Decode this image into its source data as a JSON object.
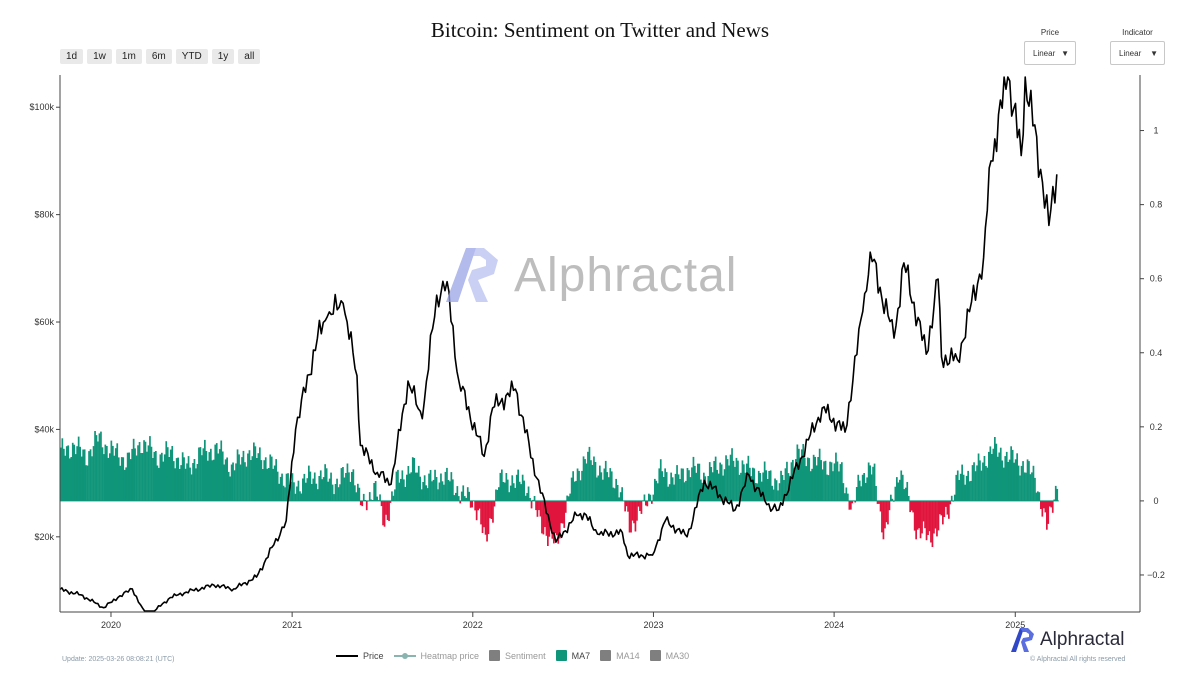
{
  "title": "Bitcoin: Sentiment on Twitter and News",
  "range_buttons": [
    "1d",
    "1w",
    "1m",
    "6m",
    "YTD",
    "1y",
    "all"
  ],
  "controls": {
    "price": {
      "label": "Price",
      "value": "Linear"
    },
    "indicator": {
      "label": "Indicator",
      "value": "Linear"
    }
  },
  "watermark": "Alphractal",
  "brand": "Alphractal",
  "update_text": "Update: 2025-03-26 08:08:21 (UTC)",
  "copyright": "© Alphractal All rights reserved",
  "legend": [
    {
      "label": "Price",
      "kind": "line",
      "color": "#000000"
    },
    {
      "label": "Heatmap price",
      "kind": "line-dot",
      "color": "#8ab4b0"
    },
    {
      "label": "Sentiment",
      "kind": "box",
      "color": "#7f7f7f"
    },
    {
      "label": "MA7",
      "kind": "box",
      "color": "#0f9579"
    },
    {
      "label": "MA14",
      "kind": "box",
      "color": "#7f7f7f"
    },
    {
      "label": "MA30",
      "kind": "box",
      "color": "#7f7f7f"
    }
  ],
  "chart_data": {
    "type": "line",
    "x_axis": {
      "type": "date",
      "range": [
        "2019-09-20",
        "2025-09-10"
      ],
      "ticks": [
        "2020",
        "2021",
        "2022",
        "2023",
        "2024",
        "2025"
      ]
    },
    "y_left": {
      "label": "",
      "range": [
        6000,
        106000
      ],
      "ticks": [
        "$20k",
        "$40k",
        "$60k",
        "$80k",
        "$100k"
      ],
      "tick_values": [
        20000,
        40000,
        60000,
        80000,
        100000
      ]
    },
    "y_right": {
      "label": "",
      "range": [
        -0.3,
        1.15
      ],
      "ticks": [
        "−0.2",
        "0",
        "0.2",
        "0.4",
        "0.6",
        "0.8",
        "1"
      ],
      "tick_values": [
        -0.2,
        0,
        0.2,
        0.4,
        0.6,
        0.8,
        1
      ]
    },
    "colors": {
      "price": "#000000",
      "positive": "#0f9579",
      "negative": "#e0143c"
    },
    "series": [
      {
        "name": "Price",
        "axis": "left",
        "points": [
          [
            "2019-09-20",
            10200
          ],
          [
            "2019-11-01",
            9200
          ],
          [
            "2019-12-17",
            6800
          ],
          [
            "2020-01-15",
            8700
          ],
          [
            "2020-02-13",
            10300
          ],
          [
            "2020-03-13",
            5000
          ],
          [
            "2020-04-30",
            8700
          ],
          [
            "2020-06-01",
            9700
          ],
          [
            "2020-07-27",
            11000
          ],
          [
            "2020-09-05",
            10300
          ],
          [
            "2020-10-21",
            12500
          ],
          [
            "2020-11-25",
            18500
          ],
          [
            "2020-12-20",
            23000
          ],
          [
            "2021-01-08",
            40000
          ],
          [
            "2021-02-21",
            57000
          ],
          [
            "2021-03-13",
            61000
          ],
          [
            "2021-04-14",
            63500
          ],
          [
            "2021-05-12",
            50000
          ],
          [
            "2021-05-19",
            37000
          ],
          [
            "2021-06-22",
            32000
          ],
          [
            "2021-07-20",
            29800
          ],
          [
            "2021-08-23",
            49000
          ],
          [
            "2021-09-21",
            42000
          ],
          [
            "2021-10-20",
            65000
          ],
          [
            "2021-11-10",
            67500
          ],
          [
            "2021-12-04",
            49000
          ],
          [
            "2022-01-24",
            35000
          ],
          [
            "2022-02-10",
            44000
          ],
          [
            "2022-03-28",
            47500
          ],
          [
            "2022-05-10",
            31000
          ],
          [
            "2022-06-18",
            19000
          ],
          [
            "2022-07-30",
            24000
          ],
          [
            "2022-08-14",
            24400
          ],
          [
            "2022-09-10",
            20500
          ],
          [
            "2022-10-30",
            20800
          ],
          [
            "2022-11-10",
            16500
          ],
          [
            "2022-12-30",
            16600
          ],
          [
            "2023-01-25",
            23000
          ],
          [
            "2023-03-10",
            20000
          ],
          [
            "2023-04-14",
            30500
          ],
          [
            "2023-06-15",
            25000
          ],
          [
            "2023-07-13",
            31500
          ],
          [
            "2023-08-18",
            26000
          ],
          [
            "2023-09-11",
            25000
          ],
          [
            "2023-10-25",
            34500
          ],
          [
            "2023-12-08",
            44000
          ],
          [
            "2024-01-23",
            39500
          ],
          [
            "2024-02-28",
            62000
          ],
          [
            "2024-03-14",
            73000
          ],
          [
            "2024-05-01",
            57000
          ],
          [
            "2024-05-21",
            71000
          ],
          [
            "2024-07-05",
            54000
          ],
          [
            "2024-07-29",
            68000
          ],
          [
            "2024-08-05",
            53500
          ],
          [
            "2024-09-06",
            53000
          ],
          [
            "2024-10-29",
            72000
          ],
          [
            "2024-11-13",
            90000
          ],
          [
            "2024-12-17",
            106000
          ],
          [
            "2025-01-13",
            91000
          ],
          [
            "2025-01-21",
            106000
          ],
          [
            "2025-02-25",
            86000
          ],
          [
            "2025-03-10",
            78000
          ],
          [
            "2025-03-26",
            87500
          ]
        ]
      },
      {
        "name": "MA7",
        "axis": "right",
        "kind": "histogram",
        "points": [
          [
            "2019-09-20",
            0.13
          ],
          [
            "2019-10-15",
            0.15
          ],
          [
            "2019-11-10",
            0.12
          ],
          [
            "2019-12-05",
            0.17
          ],
          [
            "2020-01-05",
            0.13
          ],
          [
            "2020-02-01",
            0.11
          ],
          [
            "2020-03-01",
            0.16
          ],
          [
            "2020-04-01",
            0.12
          ],
          [
            "2020-05-01",
            0.13
          ],
          [
            "2020-06-01",
            0.09
          ],
          [
            "2020-07-01",
            0.13
          ],
          [
            "2020-08-01",
            0.14
          ],
          [
            "2020-09-01",
            0.09
          ],
          [
            "2020-10-01",
            0.13
          ],
          [
            "2020-11-01",
            0.12
          ],
          [
            "2020-12-01",
            0.08
          ],
          [
            "2021-01-01",
            0.04
          ],
          [
            "2021-02-01",
            0.06
          ],
          [
            "2021-03-01",
            0.07
          ],
          [
            "2021-04-01",
            0.05
          ],
          [
            "2021-05-01",
            0.09
          ],
          [
            "2021-05-20",
            -0.02
          ],
          [
            "2021-06-15",
            0.04
          ],
          [
            "2021-07-05",
            -0.06
          ],
          [
            "2021-08-01",
            0.06
          ],
          [
            "2021-09-01",
            0.09
          ],
          [
            "2021-10-01",
            0.05
          ],
          [
            "2021-11-01",
            0.07
          ],
          [
            "2021-12-01",
            0.03
          ],
          [
            "2022-01-10",
            -0.02
          ],
          [
            "2022-01-25",
            -0.12
          ],
          [
            "2022-02-20",
            0.05
          ],
          [
            "2022-03-20",
            0.06
          ],
          [
            "2022-04-20",
            0.04
          ],
          [
            "2022-05-15",
            -0.06
          ],
          [
            "2022-06-18",
            -0.12
          ],
          [
            "2022-07-15",
            0.03
          ],
          [
            "2022-08-15",
            0.12
          ],
          [
            "2022-09-20",
            0.08
          ],
          [
            "2022-10-20",
            0.05
          ],
          [
            "2022-11-12",
            -0.07
          ],
          [
            "2022-12-10",
            -0.02
          ],
          [
            "2023-01-15",
            0.08
          ],
          [
            "2023-02-15",
            0.06
          ],
          [
            "2023-03-15",
            0.09
          ],
          [
            "2023-04-15",
            0.07
          ],
          [
            "2023-05-15",
            0.1
          ],
          [
            "2023-06-15",
            0.11
          ],
          [
            "2023-07-15",
            0.08
          ],
          [
            "2023-08-15",
            0.07
          ],
          [
            "2023-09-15",
            0.05
          ],
          [
            "2023-10-15",
            0.13
          ],
          [
            "2023-11-15",
            0.11
          ],
          [
            "2023-12-15",
            0.1
          ],
          [
            "2024-01-15",
            0.09
          ],
          [
            "2024-02-05",
            -0.04
          ],
          [
            "2024-02-20",
            0.07
          ],
          [
            "2024-03-20",
            0.08
          ],
          [
            "2024-04-10",
            -0.1
          ],
          [
            "2024-05-10",
            0.09
          ],
          [
            "2024-06-15",
            -0.08
          ],
          [
            "2024-07-10",
            -0.1
          ],
          [
            "2024-08-10",
            -0.05
          ],
          [
            "2024-09-05",
            0.06
          ],
          [
            "2024-10-15",
            0.09
          ],
          [
            "2024-11-15",
            0.14
          ],
          [
            "2024-12-15",
            0.12
          ],
          [
            "2025-01-15",
            0.1
          ],
          [
            "2025-02-10",
            0.06
          ],
          [
            "2025-03-05",
            -0.08
          ],
          [
            "2025-03-26",
            0.06
          ]
        ]
      }
    ]
  }
}
